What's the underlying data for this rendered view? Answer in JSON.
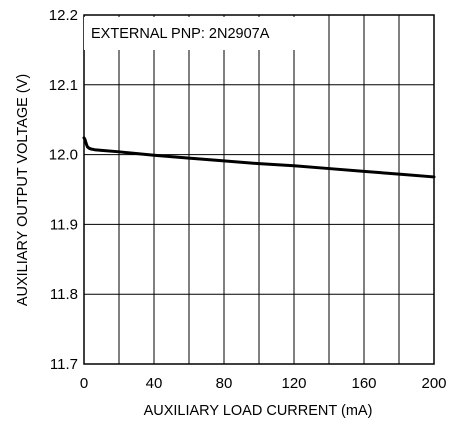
{
  "chart_data": {
    "type": "line",
    "title": "",
    "annotation": "EXTERNAL PNP: 2N2907A",
    "xlabel": "AUXILIARY LOAD CURRENT (mA)",
    "ylabel": "AUXILIARY OUTPUT VOLTAGE (V)",
    "xlim": [
      0,
      200
    ],
    "ylim": [
      11.7,
      12.2
    ],
    "x_ticks": [
      0,
      40,
      80,
      120,
      160,
      200
    ],
    "x_tick_labels": [
      "0",
      "40",
      "80",
      "120",
      "160",
      "200"
    ],
    "y_ticks": [
      11.7,
      11.8,
      11.9,
      12.0,
      12.1,
      12.2
    ],
    "y_tick_labels": [
      "11.7",
      "11.8",
      "11.9",
      "12.0",
      "12.1",
      "12.2"
    ],
    "grid": true,
    "series": [
      {
        "x": [
          0,
          0.5,
          1,
          1.5,
          2,
          3,
          4,
          6,
          10,
          20,
          40,
          60,
          80,
          100,
          120,
          140,
          160,
          180,
          200
        ],
        "y": [
          12.024,
          12.022,
          12.018,
          12.014,
          12.011,
          12.009,
          12.008,
          12.007,
          12.006,
          12.004,
          11.999,
          11.995,
          11.991,
          11.987,
          11.984,
          11.98,
          11.976,
          11.972,
          11.968
        ]
      }
    ]
  }
}
